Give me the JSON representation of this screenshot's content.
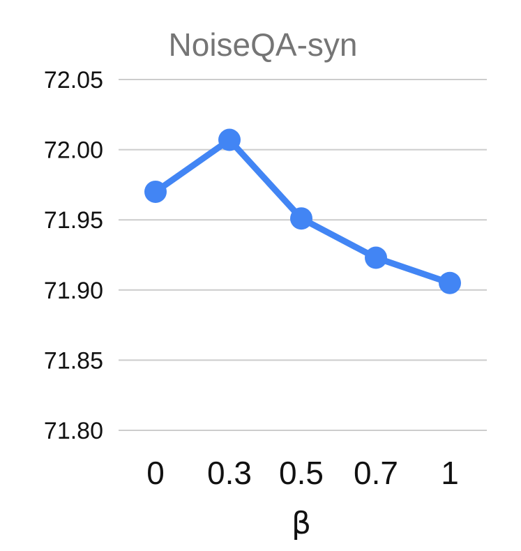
{
  "chart_data": {
    "type": "line",
    "title": "NoiseQA-syn",
    "xlabel": "β",
    "ylabel": "",
    "categories": [
      "0",
      "0.3",
      "0.5",
      "0.7",
      "1"
    ],
    "series": [
      {
        "values": [
          71.97,
          72.007,
          71.951,
          71.923,
          71.905
        ]
      }
    ],
    "ylim": [
      71.8,
      72.05
    ],
    "yticks": [
      "71.80",
      "71.85",
      "71.90",
      "71.95",
      "72.00",
      "72.05"
    ],
    "grid": true,
    "line_color": "#4285f4"
  }
}
